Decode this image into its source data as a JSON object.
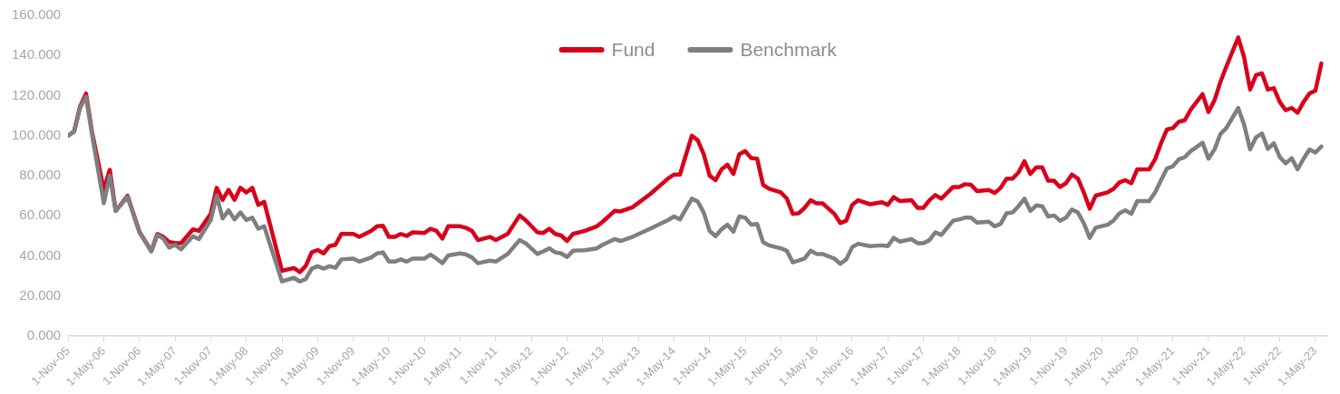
{
  "chart_data": {
    "type": "line",
    "legend": "top",
    "marker": "none",
    "line_style": "solid",
    "grid": false,
    "x": [
      "2005-11",
      "2005-12",
      "2006-01",
      "2006-02",
      "2006-03",
      "2006-05",
      "2006-06",
      "2006-07",
      "2006-09",
      "2006-11",
      "2007-01",
      "2007-02",
      "2007-03",
      "2007-04",
      "2007-05",
      "2007-06",
      "2007-08",
      "2007-09",
      "2007-11",
      "2007-12",
      "2008-01",
      "2008-02",
      "2008-03",
      "2008-04",
      "2008-05",
      "2008-06",
      "2008-07",
      "2008-08",
      "2008-11",
      "2009-01",
      "2009-02",
      "2009-03",
      "2009-04",
      "2009-05",
      "2009-06",
      "2009-07",
      "2009-08",
      "2009-09",
      "2009-11",
      "2009-12",
      "2010-02",
      "2010-03",
      "2010-04",
      "2010-05",
      "2010-06",
      "2010-07",
      "2010-08",
      "2010-09",
      "2010-11",
      "2010-12",
      "2011-01",
      "2011-02",
      "2011-03",
      "2011-05",
      "2011-06",
      "2011-07",
      "2011-08",
      "2011-10",
      "2011-11",
      "2012-01",
      "2012-03",
      "2012-04",
      "2012-06",
      "2012-07",
      "2012-08",
      "2012-09",
      "2012-10",
      "2012-11",
      "2012-12",
      "2013-02",
      "2013-04",
      "2013-05",
      "2013-07",
      "2013-08",
      "2013-10",
      "2014-01",
      "2014-04",
      "2014-05",
      "2014-06",
      "2014-08",
      "2014-09",
      "2014-10",
      "2014-11",
      "2014-12",
      "2015-01",
      "2015-02",
      "2015-03",
      "2015-04",
      "2015-05",
      "2015-06",
      "2015-07",
      "2015-08",
      "2015-09",
      "2015-11",
      "2015-12",
      "2016-01",
      "2016-02",
      "2016-03",
      "2016-04",
      "2016-05",
      "2016-06",
      "2016-08",
      "2016-09",
      "2016-10",
      "2016-11",
      "2016-12",
      "2017-02",
      "2017-04",
      "2017-05",
      "2017-06",
      "2017-07",
      "2017-09",
      "2017-10",
      "2017-11",
      "2017-12",
      "2018-01",
      "2018-02",
      "2018-04",
      "2018-05",
      "2018-06",
      "2018-07",
      "2018-08",
      "2018-10",
      "2018-11",
      "2018-12",
      "2019-01",
      "2019-02",
      "2019-03",
      "2019-04",
      "2019-05",
      "2019-06",
      "2019-07",
      "2019-08",
      "2019-09",
      "2019-10",
      "2019-11",
      "2019-12",
      "2020-01",
      "2020-02",
      "2020-03",
      "2020-04",
      "2020-06",
      "2020-07",
      "2020-08",
      "2020-09",
      "2020-10",
      "2020-11",
      "2021-01",
      "2021-02",
      "2021-03",
      "2021-04",
      "2021-05",
      "2021-06",
      "2021-07",
      "2021-08",
      "2021-10",
      "2021-11",
      "2021-12",
      "2022-01",
      "2022-02",
      "2022-04",
      "2022-05",
      "2022-06",
      "2022-07",
      "2022-08",
      "2022-09",
      "2022-10",
      "2022-11",
      "2022-12",
      "2023-01",
      "2023-02",
      "2023-03",
      "2023-04",
      "2023-05",
      "2023-06"
    ],
    "series": [
      {
        "name": "Fund",
        "color": "#d9001b",
        "values": [
          100,
          102.3,
          114.5,
          121,
          102,
          73,
          83,
          62.5,
          70,
          52,
          42.5,
          51,
          49.5,
          47,
          46.5,
          46.4,
          53.3,
          52.5,
          61,
          74,
          68,
          73,
          68,
          74,
          71.7,
          74,
          65.5,
          67,
          32.6,
          34,
          31.9,
          35,
          41.8,
          43,
          41.3,
          44.9,
          45.6,
          51,
          51,
          49.5,
          52.5,
          54.8,
          55.1,
          49.5,
          49.5,
          51,
          50,
          51.8,
          51.5,
          53.6,
          52.5,
          48.7,
          54.8,
          54.8,
          54,
          52.5,
          47.9,
          49.5,
          48,
          51,
          60.2,
          57.9,
          51.8,
          51.5,
          53.6,
          51,
          50.2,
          47.5,
          51,
          52.5,
          54.8,
          57.1,
          62.5,
          62.2,
          64.3,
          70.9,
          78.6,
          80.6,
          80.6,
          100,
          97.7,
          90.8,
          80.1,
          77.8,
          83.2,
          85.5,
          80.9,
          90.8,
          92.3,
          88.8,
          88.5,
          75.5,
          73.5,
          71.7,
          68.6,
          61,
          61.3,
          64,
          67.8,
          66.3,
          66.3,
          61,
          56.4,
          57.6,
          65.5,
          67.8,
          65.8,
          66.8,
          65.5,
          69.4,
          67.4,
          67.8,
          64,
          64,
          67.8,
          70.4,
          68.6,
          74.4,
          74.4,
          75.8,
          75.5,
          72.4,
          72.9,
          71.4,
          74,
          78.6,
          78.6,
          81.6,
          87.3,
          80.9,
          84.2,
          84.2,
          77.5,
          77.5,
          74.4,
          76.3,
          80.6,
          78.6,
          71.7,
          63.6,
          70.1,
          71.7,
          73.5,
          76.7,
          77.8,
          76.3,
          83.2,
          83.2,
          88.2,
          96.2,
          103.1,
          103.8,
          106.9,
          107.7,
          113,
          120.7,
          111.8,
          117.6,
          126.8,
          134.5,
          149,
          139,
          123,
          130.2,
          131.1,
          123,
          123.7,
          116.8,
          112.7,
          113.8,
          111.5,
          116.8,
          121,
          122.5,
          136
        ]
      },
      {
        "name": "Benchmark",
        "color": "#7f7f7f",
        "values": [
          100,
          102,
          113.8,
          119.4,
          100.8,
          66.3,
          80.1,
          62.5,
          69.4,
          51.8,
          42.3,
          50.5,
          48.7,
          44.1,
          45.6,
          43.3,
          49.9,
          48.4,
          57.9,
          70.1,
          58.7,
          62.8,
          58.2,
          61.7,
          57.9,
          59.1,
          53.6,
          54.8,
          27.3,
          29.1,
          27.3,
          28.5,
          33.7,
          34.9,
          33.7,
          34.9,
          34.1,
          38.3,
          38.7,
          37.2,
          39.2,
          41.3,
          41.8,
          37.2,
          37.2,
          38.3,
          37.2,
          38.7,
          38.7,
          40.7,
          38.7,
          36.4,
          40.3,
          41.3,
          40.7,
          39.2,
          36.4,
          37.7,
          37.2,
          41,
          47.9,
          46.4,
          41,
          42.3,
          43.8,
          41.8,
          41.3,
          39.5,
          42.6,
          42.9,
          43.8,
          45.6,
          48.4,
          47.5,
          49.5,
          53.6,
          57.9,
          59.7,
          58.2,
          68.6,
          67.1,
          61.7,
          52.5,
          49.9,
          53.3,
          55.6,
          52.1,
          59.7,
          59.1,
          55.6,
          56,
          46.9,
          45.3,
          43.8,
          42.6,
          36.8,
          37.7,
          38.7,
          42.6,
          41,
          41,
          38.7,
          36.1,
          38.3,
          44.4,
          46.1,
          44.9,
          45.3,
          44.9,
          49,
          47.2,
          48.4,
          46.4,
          46.4,
          47.9,
          51.8,
          50.5,
          57.6,
          58.2,
          59.1,
          59.1,
          56.7,
          57.1,
          54.8,
          56,
          61.3,
          61.7,
          64.8,
          68.6,
          62.5,
          65.2,
          64.8,
          59.7,
          60.2,
          57.6,
          59.1,
          63.2,
          61.7,
          56.4,
          49,
          54.1,
          55.6,
          57.6,
          61.3,
          62.8,
          61,
          67.4,
          67.4,
          71.7,
          77.8,
          83.6,
          84.7,
          88.2,
          89.3,
          92.3,
          96.5,
          88.5,
          93.1,
          100.8,
          103.8,
          113.8,
          105.4,
          93.1,
          99.2,
          101.1,
          93.4,
          96.2,
          89.3,
          86.2,
          88.8,
          83.2,
          88.5,
          93.1,
          91.6,
          94.6
        ]
      }
    ],
    "xlim": [
      "2005-11",
      "2023-07"
    ],
    "xticks": [
      {
        "value": "2005-11-01",
        "label": "1-Nov-05"
      },
      {
        "value": "2006-05-01",
        "label": "1-May-06"
      },
      {
        "value": "2006-11-01",
        "label": "1-Nov-06"
      },
      {
        "value": "2007-05-01",
        "label": "1-May-07"
      },
      {
        "value": "2007-11-01",
        "label": "1-Nov-07"
      },
      {
        "value": "2008-05-01",
        "label": "1-May-08"
      },
      {
        "value": "2008-11-01",
        "label": "1-Nov-08"
      },
      {
        "value": "2009-05-01",
        "label": "1-May-09"
      },
      {
        "value": "2009-11-01",
        "label": "1-Nov-09"
      },
      {
        "value": "2010-05-01",
        "label": "1-May-10"
      },
      {
        "value": "2010-11-01",
        "label": "1-Nov-10"
      },
      {
        "value": "2011-05-01",
        "label": "1-May-11"
      },
      {
        "value": "2011-11-01",
        "label": "1-Nov-11"
      },
      {
        "value": "2012-05-01",
        "label": "1-May-12"
      },
      {
        "value": "2012-11-01",
        "label": "1-Nov-12"
      },
      {
        "value": "2013-05-01",
        "label": "1-May-13"
      },
      {
        "value": "2013-11-01",
        "label": "1-Nov-13"
      },
      {
        "value": "2014-05-01",
        "label": "1-May-14"
      },
      {
        "value": "2014-11-01",
        "label": "1-Nov-14"
      },
      {
        "value": "2015-05-01",
        "label": "1-May-15"
      },
      {
        "value": "2015-11-01",
        "label": "1-Nov-15"
      },
      {
        "value": "2016-05-01",
        "label": "1-May-16"
      },
      {
        "value": "2016-11-01",
        "label": "1-Nov-16"
      },
      {
        "value": "2017-05-01",
        "label": "1-May-17"
      },
      {
        "value": "2017-11-01",
        "label": "1-Nov-17"
      },
      {
        "value": "2018-05-01",
        "label": "1-May-18"
      },
      {
        "value": "2018-11-01",
        "label": "1-Nov-18"
      },
      {
        "value": "2019-05-01",
        "label": "1-May-19"
      },
      {
        "value": "2019-11-01",
        "label": "1-Nov-19"
      },
      {
        "value": "2020-05-01",
        "label": "1-May-20"
      },
      {
        "value": "2020-11-01",
        "label": "1-Nov-20"
      },
      {
        "value": "2021-05-01",
        "label": "1-May-21"
      },
      {
        "value": "2021-11-01",
        "label": "1-Nov-21"
      },
      {
        "value": "2022-05-01",
        "label": "1-May-22"
      },
      {
        "value": "2022-11-01",
        "label": "1-Nov-22"
      },
      {
        "value": "2023-05-01",
        "label": "1-May-23"
      }
    ],
    "ylim": [
      0,
      160
    ],
    "yticks": [
      {
        "value": 0,
        "label": "0.000"
      },
      {
        "value": 20,
        "label": "20.000"
      },
      {
        "value": 40,
        "label": "40.000"
      },
      {
        "value": 60,
        "label": "60.000"
      },
      {
        "value": 80,
        "label": "80.000"
      },
      {
        "value": 100,
        "label": "100.000"
      },
      {
        "value": 120,
        "label": "120.000"
      },
      {
        "value": 140,
        "label": "140.000"
      },
      {
        "value": 160,
        "label": "160.000"
      }
    ]
  }
}
